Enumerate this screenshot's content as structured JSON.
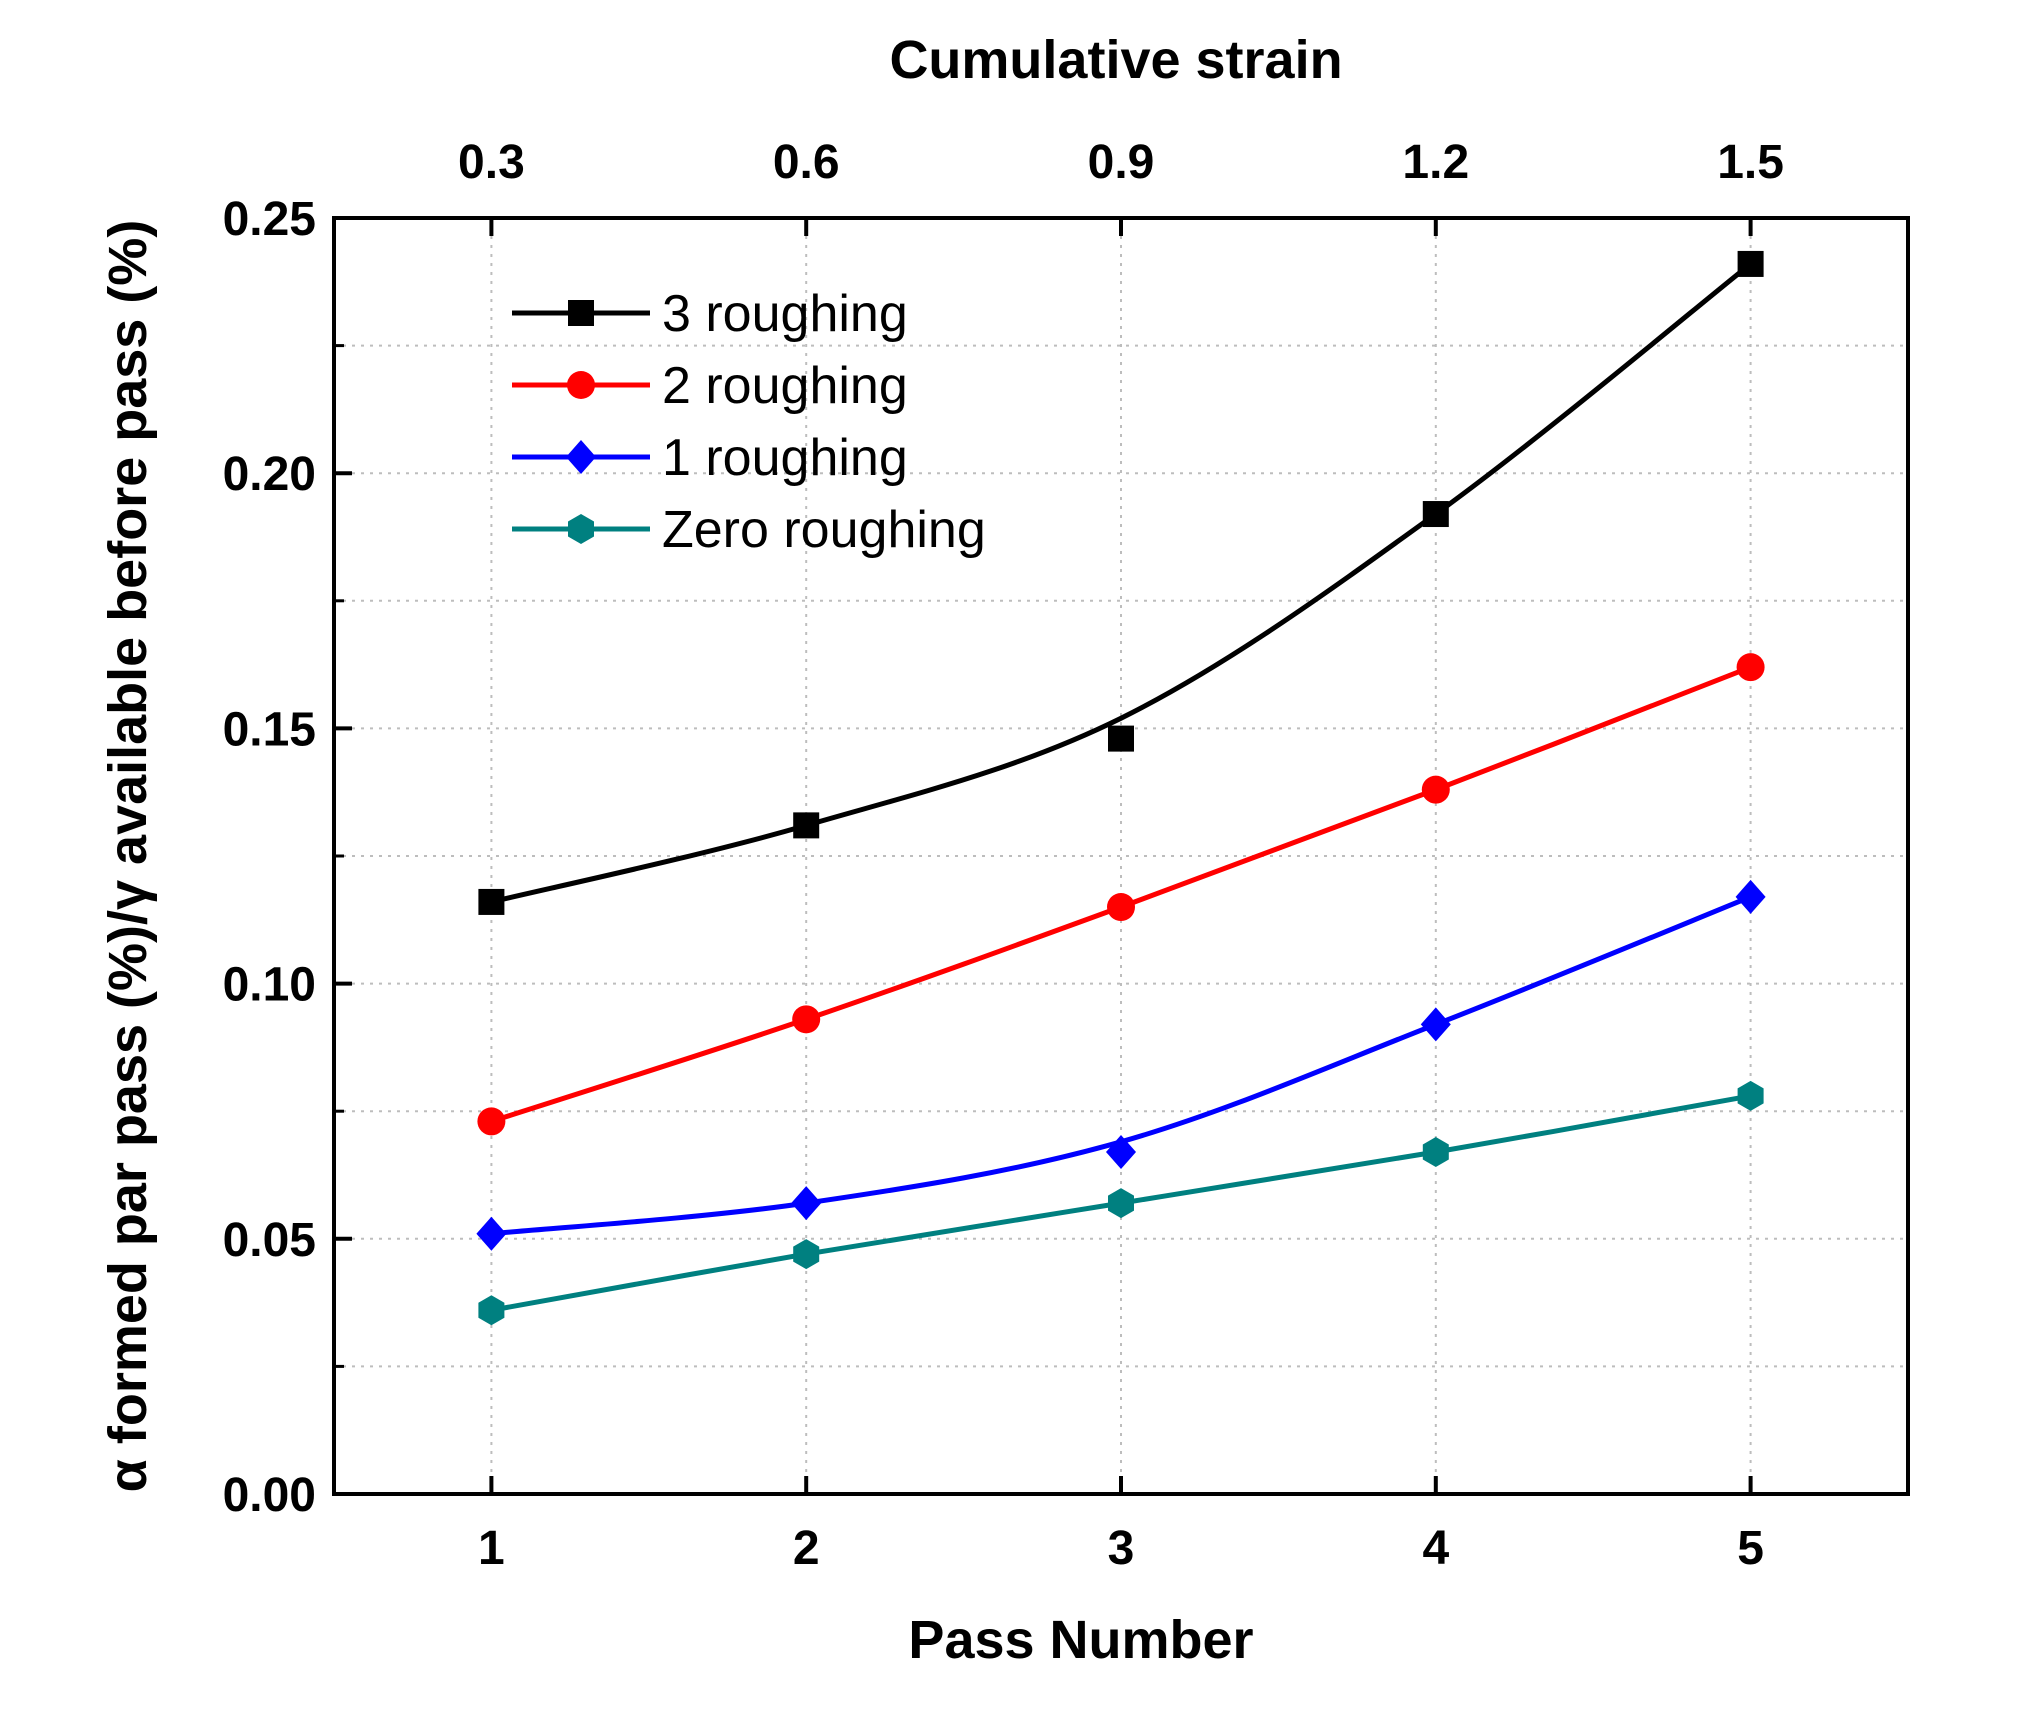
{
  "chart_data": {
    "type": "line",
    "xlabel": "Pass Number",
    "x2label": "Cumulative strain",
    "ylabel": "α formed par pass (%)/γ available before pass (%)",
    "x": [
      1,
      2,
      3,
      4,
      5
    ],
    "x_ticks": [
      "1",
      "2",
      "3",
      "4",
      "5"
    ],
    "x2_ticks": [
      "0.3",
      "0.6",
      "0.9",
      "1.2",
      "1.5"
    ],
    "xlim": [
      0.5,
      5.5
    ],
    "ylim": [
      0,
      0.25
    ],
    "y_ticks": [
      "0.00",
      "0.05",
      "0.10",
      "0.15",
      "0.20",
      "0.25"
    ],
    "grid": true,
    "legend_position": "top-left",
    "series": [
      {
        "name": "3 roughing",
        "color": "#000000",
        "marker": "square",
        "values": [
          0.116,
          0.131,
          0.148,
          0.192,
          0.241
        ],
        "fit": [
          0.116,
          0.131,
          0.152,
          0.192,
          0.241
        ]
      },
      {
        "name": "2 roughing",
        "color": "#ff0000",
        "marker": "circle",
        "values": [
          0.073,
          0.093,
          0.115,
          0.138,
          0.162
        ]
      },
      {
        "name": "1 roughing",
        "color": "#0000ff",
        "marker": "diamond",
        "values": [
          0.051,
          0.057,
          0.067,
          0.092,
          0.117
        ],
        "fit": [
          0.051,
          0.057,
          0.069,
          0.092,
          0.117
        ]
      },
      {
        "name": "Zero roughing",
        "color": "#008080",
        "marker": "hexagon",
        "values": [
          0.036,
          0.047,
          0.057,
          0.067,
          0.078
        ]
      }
    ]
  }
}
